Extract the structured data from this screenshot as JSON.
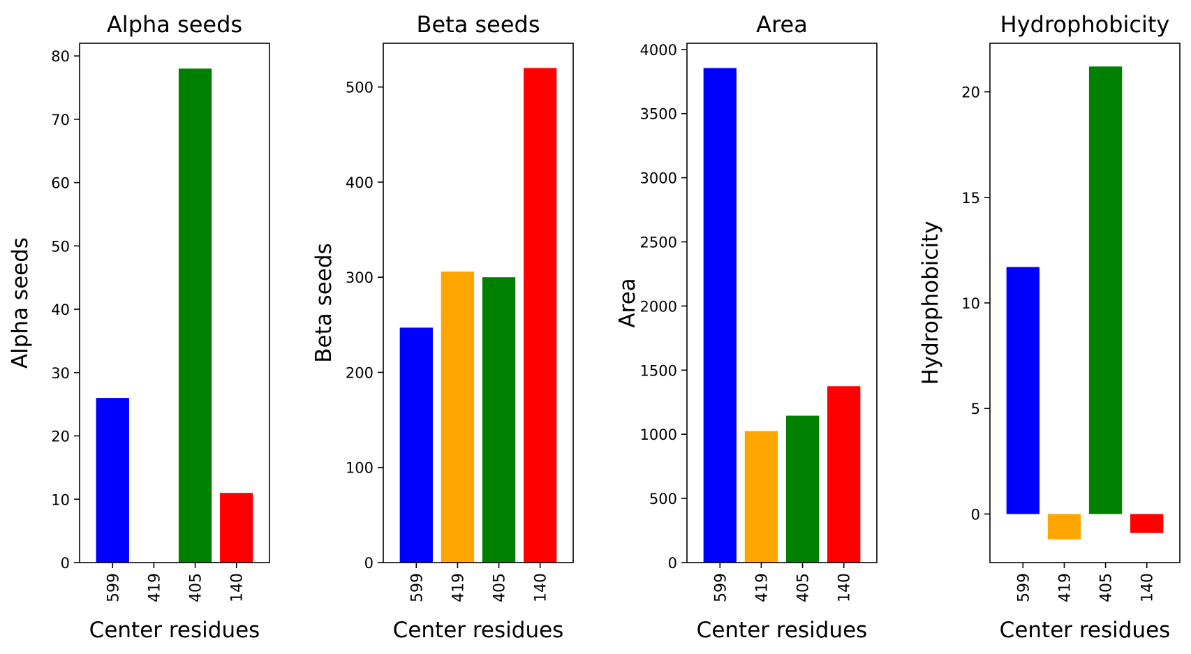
{
  "chart_data": [
    {
      "type": "bar",
      "title": "Alpha seeds",
      "xlabel": "Center residues",
      "ylabel": "Alpha seeds",
      "categories": [
        "599",
        "419",
        "405",
        "140"
      ],
      "values": [
        26,
        0,
        78,
        11
      ],
      "colors": [
        "#0000ff",
        "#ffa500",
        "#008000",
        "#ff0000"
      ],
      "ylim": [
        0,
        82
      ],
      "yticks": [
        0,
        10,
        20,
        30,
        40,
        50,
        60,
        70,
        80
      ],
      "ytick_labels": [
        "0",
        "10",
        "20",
        "30",
        "40",
        "50",
        "60",
        "70",
        "80"
      ],
      "grid": false
    },
    {
      "type": "bar",
      "title": "Beta seeds",
      "xlabel": "Center residues",
      "ylabel": "Beta seeds",
      "categories": [
        "599",
        "419",
        "405",
        "140"
      ],
      "values": [
        247,
        306,
        300,
        520
      ],
      "colors": [
        "#0000ff",
        "#ffa500",
        "#008000",
        "#ff0000"
      ],
      "ylim": [
        0,
        546
      ],
      "yticks": [
        0,
        100,
        200,
        300,
        400,
        500
      ],
      "ytick_labels": [
        "0",
        "100",
        "200",
        "300",
        "400",
        "500"
      ],
      "grid": false
    },
    {
      "type": "bar",
      "title": "Area",
      "xlabel": "Center residues",
      "ylabel": "Area",
      "categories": [
        "599",
        "419",
        "405",
        "140"
      ],
      "values": [
        3855,
        1025,
        1145,
        1375
      ],
      "colors": [
        "#0000ff",
        "#ffa500",
        "#008000",
        "#ff0000"
      ],
      "ylim": [
        0,
        4048
      ],
      "yticks": [
        0,
        500,
        1000,
        1500,
        2000,
        2500,
        3000,
        3500,
        4000
      ],
      "ytick_labels": [
        "0",
        "500",
        "1000",
        "1500",
        "2000",
        "2500",
        "3000",
        "3500",
        "4000"
      ],
      "grid": false
    },
    {
      "type": "bar",
      "title": "Hydrophobicity",
      "xlabel": "Center residues",
      "ylabel": "Hydrophobicity",
      "categories": [
        "599",
        "419",
        "405",
        "140"
      ],
      "values": [
        11.7,
        -1.2,
        21.2,
        -0.9
      ],
      "colors": [
        "#0000ff",
        "#ffa500",
        "#008000",
        "#ff0000"
      ],
      "ylim": [
        -2.3,
        22.3
      ],
      "yticks": [
        0,
        5,
        10,
        15,
        20
      ],
      "ytick_labels": [
        "0",
        "5",
        "10",
        "15",
        "20"
      ],
      "grid": false
    }
  ]
}
